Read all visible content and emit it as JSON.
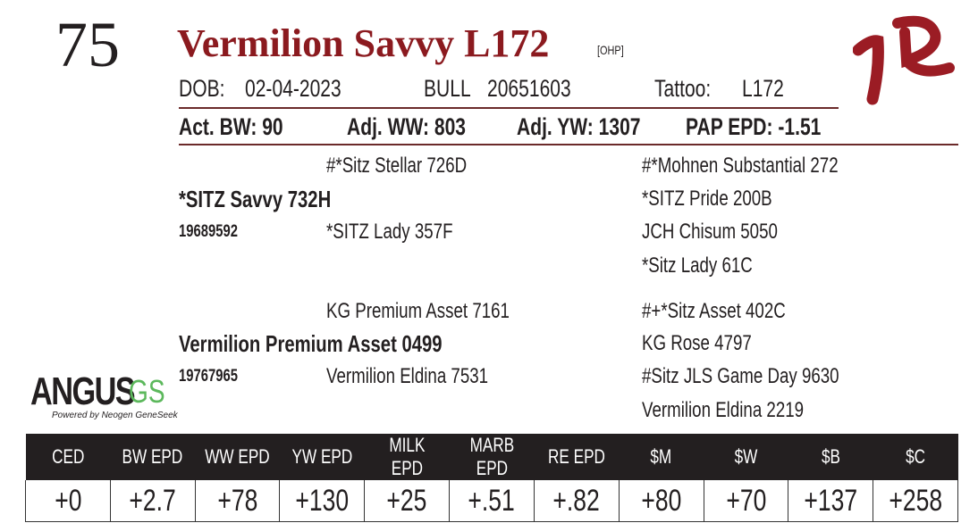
{
  "lot": "75",
  "name": "Vermilion Savvy L172",
  "tag": "[OHP]",
  "dob_label": "DOB:",
  "dob": "02-04-2023",
  "sex": "BULL",
  "reg": "20651603",
  "tattoo_label": "Tattoo:",
  "tattoo": "L172",
  "stats": [
    "Act. BW: 90",
    "Adj. WW: 803",
    "Adj. YW: 1307",
    "PAP EPD: -1.51"
  ],
  "logo_text": "VR",
  "pedigree": {
    "sire": "*SITZ Savvy 732H",
    "sire_reg": "19689592",
    "ss": "#*Sitz Stellar 726D",
    "sd": "*SITZ Lady 357F",
    "sss": "#*Mohnen Substantial 272",
    "ssd": "*SITZ Pride 200B",
    "sds": "JCH Chisum 5050",
    "sdd": "*Sitz Lady 61C",
    "dam": "Vermilion Premium Asset 0499",
    "dam_reg": "19767965",
    "ds": "KG Premium Asset 7161",
    "dd": "Vermilion Eldina 7531",
    "dss": "#+*Sitz Asset 402C",
    "dsd": "KG Rose 4797",
    "dds": "#Sitz JLS Game Day 9630",
    "ddd": "Vermilion Eldina 2219"
  },
  "angus_logo": {
    "main": "ANGUS",
    "gs": "GS",
    "sub": "Powered by Neogen GeneSeek"
  },
  "epd_headers": [
    "CED",
    "BW EPD",
    "WW EPD",
    "YW EPD",
    "MILK EPD",
    "MARB EPD",
    "RE EPD",
    "$M",
    "$W",
    "$B",
    "$C"
  ],
  "epd_values": [
    "+0",
    "+2.7",
    "+78",
    "+130",
    "+25",
    "+.51",
    "+.82",
    "+80",
    "+70",
    "+137",
    "+258"
  ]
}
